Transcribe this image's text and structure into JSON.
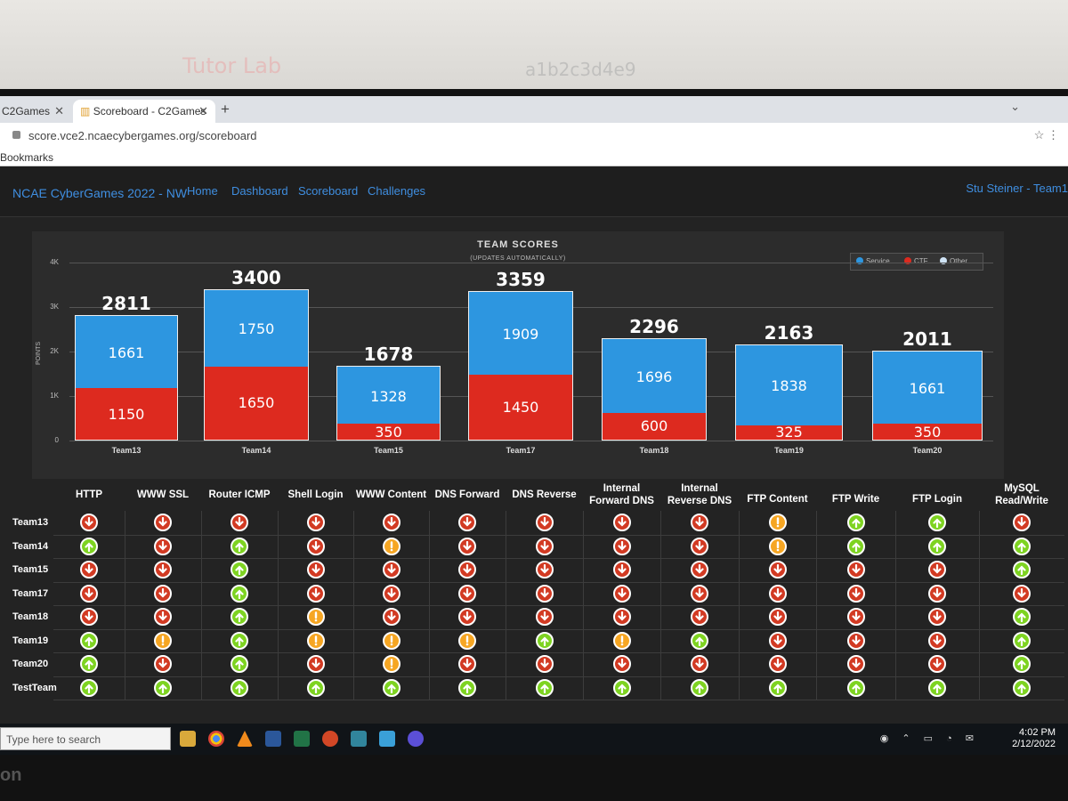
{
  "wall": {
    "text1": "Tutor Lab",
    "text2": "a1b2c3d4e9"
  },
  "browser": {
    "tabs": [
      {
        "label": "C2Games"
      },
      {
        "label": "Scoreboard - C2Games"
      }
    ],
    "url": "score.vce2.ncaecybergames.org/scoreboard",
    "bookmarks_label": "Bookmarks"
  },
  "nav": {
    "brand": "NCAE CyberGames 2022 - NW",
    "links": [
      "Home",
      "Dashboard",
      "Scoreboard",
      "Challenges"
    ],
    "user": "Stu Steiner - Team1"
  },
  "chart_data": {
    "type": "bar",
    "stacked": true,
    "title": "TEAM SCORES",
    "subtitle": "(UPDATES AUTOMATICALLY)",
    "ylabel": "POINTS",
    "ylim": [
      0,
      4000
    ],
    "yticks": [
      "0",
      "1K",
      "2K",
      "3K",
      "4K"
    ],
    "legend_position": "top-right",
    "categories": [
      "Team13",
      "Team14",
      "Team15",
      "Team17",
      "Team18",
      "Team19",
      "Team20"
    ],
    "series": [
      {
        "name": "Service",
        "color": "#2d96e0",
        "values": [
          1661,
          1750,
          1328,
          1909,
          1696,
          1838,
          1661
        ]
      },
      {
        "name": "CTF",
        "color": "#dd2a1f",
        "values": [
          1150,
          1650,
          350,
          1450,
          600,
          325,
          350
        ]
      },
      {
        "name": "Other",
        "color": "#cfe3f5",
        "values": [
          0,
          0,
          0,
          0,
          0,
          0,
          0
        ]
      }
    ],
    "totals": [
      2811,
      3400,
      1678,
      3359,
      2296,
      2163,
      2011
    ]
  },
  "services": {
    "columns": [
      "HTTP",
      "WWW SSL",
      "Router ICMP",
      "Shell Login",
      "WWW Content",
      "DNS Forward",
      "DNS Reverse",
      "Internal Forward DNS",
      "Internal Reverse DNS",
      "FTP Content",
      "FTP Write",
      "FTP Login",
      "MySQL Read/Write"
    ],
    "rows": [
      {
        "team": "Team13",
        "status": [
          "down",
          "down",
          "down",
          "down",
          "down",
          "down",
          "down",
          "down",
          "down",
          "warn",
          "up",
          "up",
          "down"
        ]
      },
      {
        "team": "Team14",
        "status": [
          "up",
          "down",
          "up",
          "down",
          "warn",
          "down",
          "down",
          "down",
          "down",
          "warn",
          "up",
          "up",
          "up"
        ]
      },
      {
        "team": "Team15",
        "status": [
          "down",
          "down",
          "up",
          "down",
          "down",
          "down",
          "down",
          "down",
          "down",
          "down",
          "down",
          "down",
          "up"
        ]
      },
      {
        "team": "Team17",
        "status": [
          "down",
          "down",
          "up",
          "down",
          "down",
          "down",
          "down",
          "down",
          "down",
          "down",
          "down",
          "down",
          "down"
        ]
      },
      {
        "team": "Team18",
        "status": [
          "down",
          "down",
          "up",
          "warn",
          "down",
          "down",
          "down",
          "down",
          "down",
          "down",
          "down",
          "down",
          "up"
        ]
      },
      {
        "team": "Team19",
        "status": [
          "up",
          "warn",
          "up",
          "warn",
          "warn",
          "warn",
          "up",
          "warn",
          "up",
          "down",
          "down",
          "down",
          "up"
        ]
      },
      {
        "team": "Team20",
        "status": [
          "up",
          "down",
          "up",
          "down",
          "warn",
          "down",
          "down",
          "down",
          "down",
          "down",
          "down",
          "down",
          "up"
        ]
      },
      {
        "team": "TestTeam",
        "status": [
          "up",
          "up",
          "up",
          "up",
          "up",
          "up",
          "up",
          "up",
          "up",
          "up",
          "up",
          "up",
          "up"
        ]
      }
    ]
  },
  "taskbar": {
    "search_placeholder": "Type here to search",
    "time": "4:02 PM",
    "date": "2/12/2022"
  },
  "monitor_brand": "on"
}
